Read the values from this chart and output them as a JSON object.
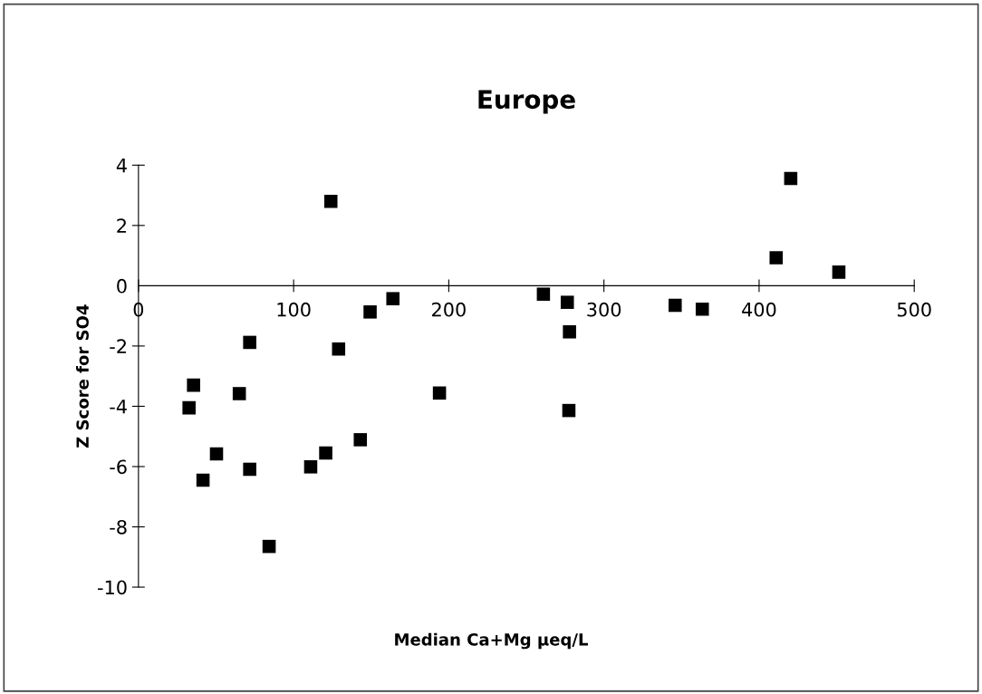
{
  "chart_data": {
    "type": "scatter",
    "title": "Europe",
    "xlabel": "Median Ca+Mg µeq/L",
    "ylabel": "Z Score for SO4",
    "x": [
      32.6,
      35.5,
      41.6,
      50.3,
      65,
      71.7,
      71.7,
      84.2,
      111,
      120.7,
      124,
      129,
      143,
      149.3,
      164,
      194,
      261,
      276.4,
      277.8,
      277.4,
      345.9,
      363.4,
      411,
      420.4,
      451.4
    ],
    "series": [
      {
        "color": "#000000",
        "values": [
          -4.05,
          -3.3,
          -6.45,
          -5.58,
          -3.58,
          -1.88,
          -6.09,
          -8.65,
          -6.01,
          -5.55,
          2.8,
          -2.1,
          -5.11,
          -0.87,
          -0.43,
          -3.56,
          -0.28,
          -0.55,
          -1.53,
          -4.14,
          -0.65,
          -0.78,
          0.93,
          3.56,
          0.45
        ]
      }
    ],
    "xlim": [
      0,
      500
    ],
    "xticks": [
      0,
      100,
      200,
      300,
      400,
      500
    ],
    "ylim": [
      -10,
      4
    ],
    "yticks": [
      -10,
      -8,
      -6,
      -4,
      -2,
      0,
      2,
      4
    ],
    "marker": "square",
    "grid": false,
    "legend": false
  }
}
